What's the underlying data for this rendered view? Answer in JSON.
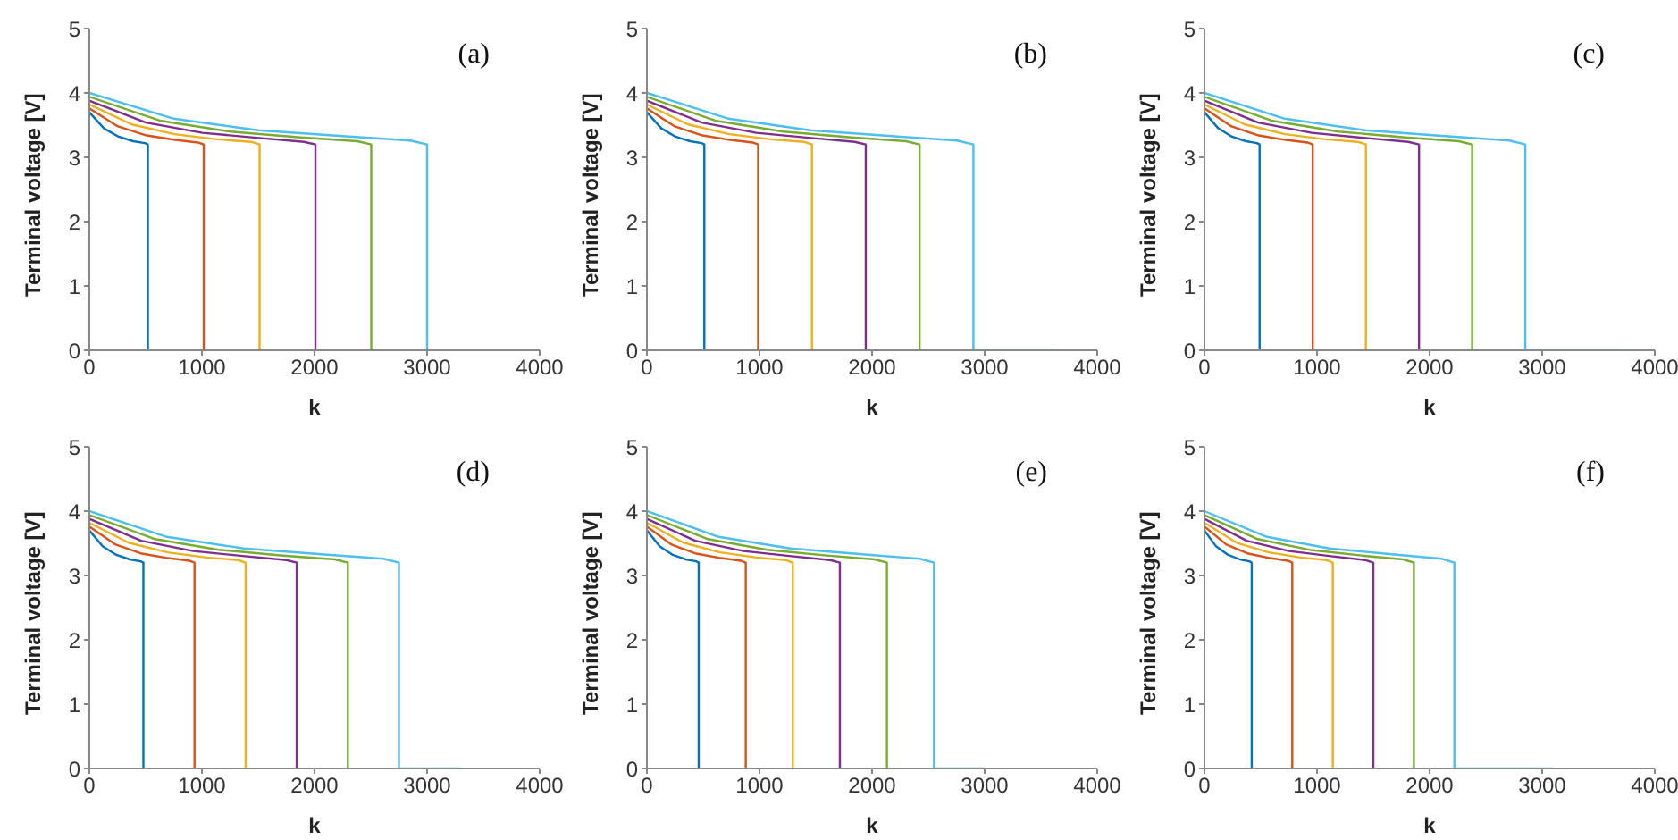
{
  "chart_data": [
    {
      "type": "line",
      "annotations": [
        "(a)"
      ],
      "xlabel": "k",
      "ylabel": "Terminal voltage [V]",
      "xlim": [
        0,
        4000
      ],
      "xticks": [
        0,
        1000,
        2000,
        3000,
        4000
      ],
      "ylim": [
        0,
        5
      ],
      "yticks": [
        0,
        1,
        2,
        3,
        4,
        5
      ],
      "grid": false,
      "marker": "none",
      "line_style": "solid",
      "series": [
        {
          "color": "#0072bd",
          "x": [
            0,
            130,
            260,
            390,
            494,
            520,
            520
          ],
          "values": [
            3.7,
            3.45,
            3.32,
            3.25,
            3.22,
            3.2,
            0
          ]
        },
        {
          "color": "#d95319",
          "x": [
            0,
            254,
            508,
            762,
            965,
            1016,
            1016
          ],
          "values": [
            3.76,
            3.48,
            3.34,
            3.27,
            3.23,
            3.2,
            0
          ]
        },
        {
          "color": "#edb120",
          "x": [
            0,
            378,
            756,
            1134,
            1436,
            1512,
            1512
          ],
          "values": [
            3.82,
            3.51,
            3.36,
            3.28,
            3.24,
            3.2,
            0
          ]
        },
        {
          "color": "#7e2f8e",
          "x": [
            0,
            502,
            1004,
            1506,
            1908,
            2008,
            2008
          ],
          "values": [
            3.88,
            3.54,
            3.38,
            3.3,
            3.24,
            3.2,
            0
          ]
        },
        {
          "color": "#77ac30",
          "x": [
            0,
            626,
            1252,
            1878,
            2379,
            2504,
            2504
          ],
          "values": [
            3.94,
            3.57,
            3.4,
            3.31,
            3.25,
            3.2,
            0
          ]
        },
        {
          "color": "#4dbeee",
          "x": [
            0,
            750,
            1500,
            2250,
            2850,
            3000,
            3000
          ],
          "values": [
            4.0,
            3.6,
            3.42,
            3.33,
            3.26,
            3.2,
            0
          ]
        }
      ]
    },
    {
      "type": "line",
      "annotations": [
        "(b)"
      ],
      "xlabel": "k",
      "ylabel": "Terminal voltage [V]",
      "xlim": [
        0,
        4000
      ],
      "xticks": [
        0,
        1000,
        2000,
        3000,
        4000
      ],
      "ylim": [
        0,
        5
      ],
      "yticks": [
        0,
        1,
        2,
        3,
        4,
        5
      ],
      "grid": false,
      "marker": "none",
      "line_style": "solid",
      "series": [
        {
          "color": "#0072bd",
          "x": [
            0,
            128,
            255,
            383,
            485,
            510,
            510
          ],
          "values": [
            3.7,
            3.45,
            3.32,
            3.25,
            3.22,
            3.2,
            0
          ]
        },
        {
          "color": "#d95319",
          "x": [
            0,
            247,
            494,
            741,
            939,
            988,
            988
          ],
          "values": [
            3.76,
            3.48,
            3.34,
            3.27,
            3.23,
            3.2,
            0
          ]
        },
        {
          "color": "#edb120",
          "x": [
            0,
            367,
            733,
            1100,
            1393,
            1466,
            1466
          ],
          "values": [
            3.82,
            3.51,
            3.36,
            3.28,
            3.24,
            3.2,
            0
          ]
        },
        {
          "color": "#7e2f8e",
          "x": [
            0,
            486,
            972,
            1458,
            1847,
            1944,
            1944
          ],
          "values": [
            3.88,
            3.54,
            3.38,
            3.3,
            3.24,
            3.2,
            0
          ]
        },
        {
          "color": "#77ac30",
          "x": [
            0,
            606,
            1211,
            1817,
            2301,
            2422,
            2422
          ],
          "values": [
            3.94,
            3.57,
            3.4,
            3.31,
            3.25,
            3.2,
            0
          ]
        },
        {
          "color": "#4dbeee",
          "x": [
            0,
            725,
            1450,
            2175,
            2755,
            2900,
            2900,
            3600
          ],
          "values": [
            4.0,
            3.6,
            3.42,
            3.33,
            3.26,
            3.2,
            0,
            0
          ]
        }
      ]
    },
    {
      "type": "line",
      "annotations": [
        "(c)"
      ],
      "xlabel": "k",
      "ylabel": "Terminal voltage [V]",
      "xlim": [
        0,
        4000
      ],
      "xticks": [
        0,
        1000,
        2000,
        3000,
        4000
      ],
      "ylim": [
        0,
        5
      ],
      "yticks": [
        0,
        1,
        2,
        3,
        4,
        5
      ],
      "grid": false,
      "marker": "none",
      "line_style": "solid",
      "series": [
        {
          "color": "#0072bd",
          "x": [
            0,
            123,
            245,
            368,
            466,
            490,
            490
          ],
          "values": [
            3.7,
            3.45,
            3.32,
            3.25,
            3.22,
            3.2,
            0
          ]
        },
        {
          "color": "#d95319",
          "x": [
            0,
            241,
            481,
            722,
            914,
            962,
            962
          ],
          "values": [
            3.76,
            3.48,
            3.34,
            3.27,
            3.23,
            3.2,
            0
          ]
        },
        {
          "color": "#edb120",
          "x": [
            0,
            359,
            717,
            1076,
            1362,
            1434,
            1434
          ],
          "values": [
            3.82,
            3.51,
            3.36,
            3.28,
            3.24,
            3.2,
            0
          ]
        },
        {
          "color": "#7e2f8e",
          "x": [
            0,
            477,
            953,
            1430,
            1811,
            1906,
            1906
          ],
          "values": [
            3.88,
            3.54,
            3.38,
            3.3,
            3.24,
            3.2,
            0
          ]
        },
        {
          "color": "#77ac30",
          "x": [
            0,
            595,
            1189,
            1784,
            2259,
            2378,
            2378
          ],
          "values": [
            3.94,
            3.57,
            3.4,
            3.31,
            3.25,
            3.2,
            0
          ]
        },
        {
          "color": "#4dbeee",
          "x": [
            0,
            713,
            1425,
            2138,
            2708,
            2850,
            2850,
            3700
          ],
          "values": [
            4.0,
            3.6,
            3.42,
            3.33,
            3.26,
            3.2,
            0,
            0
          ]
        }
      ]
    },
    {
      "type": "line",
      "annotations": [
        "(d)"
      ],
      "xlabel": "k",
      "ylabel": "Terminal voltage [V]",
      "xlim": [
        0,
        4000
      ],
      "xticks": [
        0,
        1000,
        2000,
        3000,
        4000
      ],
      "ylim": [
        0,
        5
      ],
      "yticks": [
        0,
        1,
        2,
        3,
        4,
        5
      ],
      "grid": false,
      "marker": "none",
      "line_style": "solid",
      "series": [
        {
          "color": "#0072bd",
          "x": [
            0,
            120,
            240,
            360,
            456,
            480,
            480
          ],
          "values": [
            3.7,
            3.45,
            3.32,
            3.25,
            3.22,
            3.2,
            0
          ]
        },
        {
          "color": "#d95319",
          "x": [
            0,
            234,
            467,
            701,
            887,
            934,
            934
          ],
          "values": [
            3.76,
            3.48,
            3.34,
            3.27,
            3.23,
            3.2,
            0
          ]
        },
        {
          "color": "#edb120",
          "x": [
            0,
            347,
            694,
            1041,
            1319,
            1388,
            1388
          ],
          "values": [
            3.82,
            3.51,
            3.36,
            3.28,
            3.24,
            3.2,
            0
          ]
        },
        {
          "color": "#7e2f8e",
          "x": [
            0,
            461,
            921,
            1382,
            1750,
            1842,
            1842
          ],
          "values": [
            3.88,
            3.54,
            3.38,
            3.3,
            3.24,
            3.2,
            0
          ]
        },
        {
          "color": "#77ac30",
          "x": [
            0,
            574,
            1148,
            1722,
            2181,
            2296,
            2296
          ],
          "values": [
            3.94,
            3.57,
            3.4,
            3.31,
            3.25,
            3.2,
            0
          ]
        },
        {
          "color": "#4dbeee",
          "x": [
            0,
            688,
            1375,
            2063,
            2613,
            2750,
            2750,
            3300
          ],
          "values": [
            4.0,
            3.6,
            3.42,
            3.33,
            3.26,
            3.2,
            0,
            0
          ]
        }
      ]
    },
    {
      "type": "line",
      "annotations": [
        "(e)"
      ],
      "xlabel": "k",
      "ylabel": "Terminal voltage [V]",
      "xlim": [
        0,
        4000
      ],
      "xticks": [
        0,
        1000,
        2000,
        3000,
        4000
      ],
      "ylim": [
        0,
        5
      ],
      "yticks": [
        0,
        1,
        2,
        3,
        4,
        5
      ],
      "grid": false,
      "marker": "none",
      "line_style": "solid",
      "series": [
        {
          "color": "#0072bd",
          "x": [
            0,
            115,
            230,
            345,
            437,
            460,
            460
          ],
          "values": [
            3.7,
            3.45,
            3.32,
            3.25,
            3.22,
            3.2,
            0
          ]
        },
        {
          "color": "#d95319",
          "x": [
            0,
            220,
            439,
            659,
            834,
            878,
            878
          ],
          "values": [
            3.76,
            3.48,
            3.34,
            3.27,
            3.23,
            3.2,
            0
          ]
        },
        {
          "color": "#edb120",
          "x": [
            0,
            324,
            648,
            972,
            1231,
            1296,
            1296
          ],
          "values": [
            3.82,
            3.51,
            3.36,
            3.28,
            3.24,
            3.2,
            0
          ]
        },
        {
          "color": "#7e2f8e",
          "x": [
            0,
            429,
            857,
            1286,
            1628,
            1714,
            1714
          ],
          "values": [
            3.88,
            3.54,
            3.38,
            3.3,
            3.24,
            3.2,
            0
          ]
        },
        {
          "color": "#77ac30",
          "x": [
            0,
            533,
            1066,
            1599,
            2025,
            2132,
            2132
          ],
          "values": [
            3.94,
            3.57,
            3.4,
            3.31,
            3.25,
            3.2,
            0
          ]
        },
        {
          "color": "#4dbeee",
          "x": [
            0,
            638,
            1275,
            1913,
            2423,
            2550,
            2550,
            3000
          ],
          "values": [
            4.0,
            3.6,
            3.42,
            3.33,
            3.26,
            3.2,
            0,
            0
          ]
        }
      ]
    },
    {
      "type": "line",
      "annotations": [
        "(f)"
      ],
      "xlabel": "k",
      "ylabel": "Terminal voltage [V]",
      "xlim": [
        0,
        4000
      ],
      "xticks": [
        0,
        1000,
        2000,
        3000,
        4000
      ],
      "ylim": [
        0,
        5
      ],
      "yticks": [
        0,
        1,
        2,
        3,
        4,
        5
      ],
      "grid": false,
      "marker": "none",
      "line_style": "solid",
      "series": [
        {
          "color": "#0072bd",
          "x": [
            0,
            105,
            210,
            315,
            399,
            420,
            420
          ],
          "values": [
            3.7,
            3.45,
            3.32,
            3.25,
            3.22,
            3.2,
            0
          ]
        },
        {
          "color": "#d95319",
          "x": [
            0,
            195,
            390,
            585,
            741,
            780,
            780
          ],
          "values": [
            3.76,
            3.48,
            3.34,
            3.27,
            3.23,
            3.2,
            0
          ]
        },
        {
          "color": "#edb120",
          "x": [
            0,
            285,
            570,
            855,
            1083,
            1140,
            1140
          ],
          "values": [
            3.82,
            3.51,
            3.36,
            3.28,
            3.24,
            3.2,
            0
          ]
        },
        {
          "color": "#7e2f8e",
          "x": [
            0,
            375,
            750,
            1125,
            1425,
            1500,
            1500
          ],
          "values": [
            3.88,
            3.54,
            3.38,
            3.3,
            3.24,
            3.2,
            0
          ]
        },
        {
          "color": "#77ac30",
          "x": [
            0,
            465,
            930,
            1395,
            1767,
            1860,
            1860
          ],
          "values": [
            3.94,
            3.57,
            3.4,
            3.31,
            3.25,
            3.2,
            0
          ]
        },
        {
          "color": "#4dbeee",
          "x": [
            0,
            555,
            1110,
            1665,
            2109,
            2220,
            2220,
            3100
          ],
          "values": [
            4.0,
            3.6,
            3.42,
            3.33,
            3.26,
            3.2,
            0,
            0
          ]
        }
      ]
    }
  ]
}
